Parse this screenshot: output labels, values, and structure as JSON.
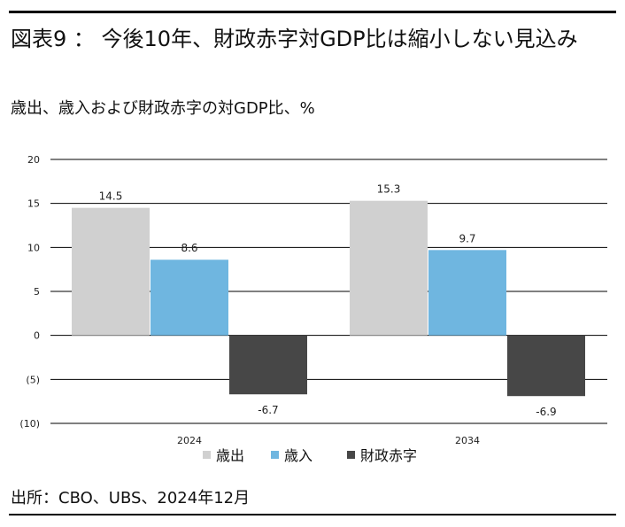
{
  "header": {
    "title": "図表9 ： 今後10年、財政赤字対GDP比は縮小しない見込み",
    "subtitle": "歳出、歳入および財政赤字の対GDP比、%"
  },
  "footer": {
    "source": "出所：CBO、UBS、2024年12月"
  },
  "chart_data": {
    "type": "bar",
    "categories": [
      "2024",
      "2034"
    ],
    "series": [
      {
        "name": "歳出",
        "color": "#d0d0d0",
        "values": [
          14.5,
          15.3
        ],
        "labels": [
          "14.5",
          "15.3"
        ]
      },
      {
        "name": "歳入",
        "color": "#6fb6e0",
        "values": [
          8.6,
          9.7
        ],
        "labels": [
          "8.6",
          "9.7"
        ]
      },
      {
        "name": "財政赤字",
        "color": "#474747",
        "values": [
          -6.7,
          -6.9
        ],
        "labels": [
          "-6.7",
          "-6.9"
        ]
      }
    ],
    "yticks": [
      {
        "value": 20,
        "label": "20"
      },
      {
        "value": 15,
        "label": "15"
      },
      {
        "value": 10,
        "label": "10"
      },
      {
        "value": 5,
        "label": "5"
      },
      {
        "value": 0,
        "label": "0"
      },
      {
        "value": -5,
        "label": "(5)"
      },
      {
        "value": -10,
        "label": "(10)"
      }
    ],
    "ylim": [
      -10,
      20
    ],
    "grid": true,
    "legend_position": "bottom"
  }
}
